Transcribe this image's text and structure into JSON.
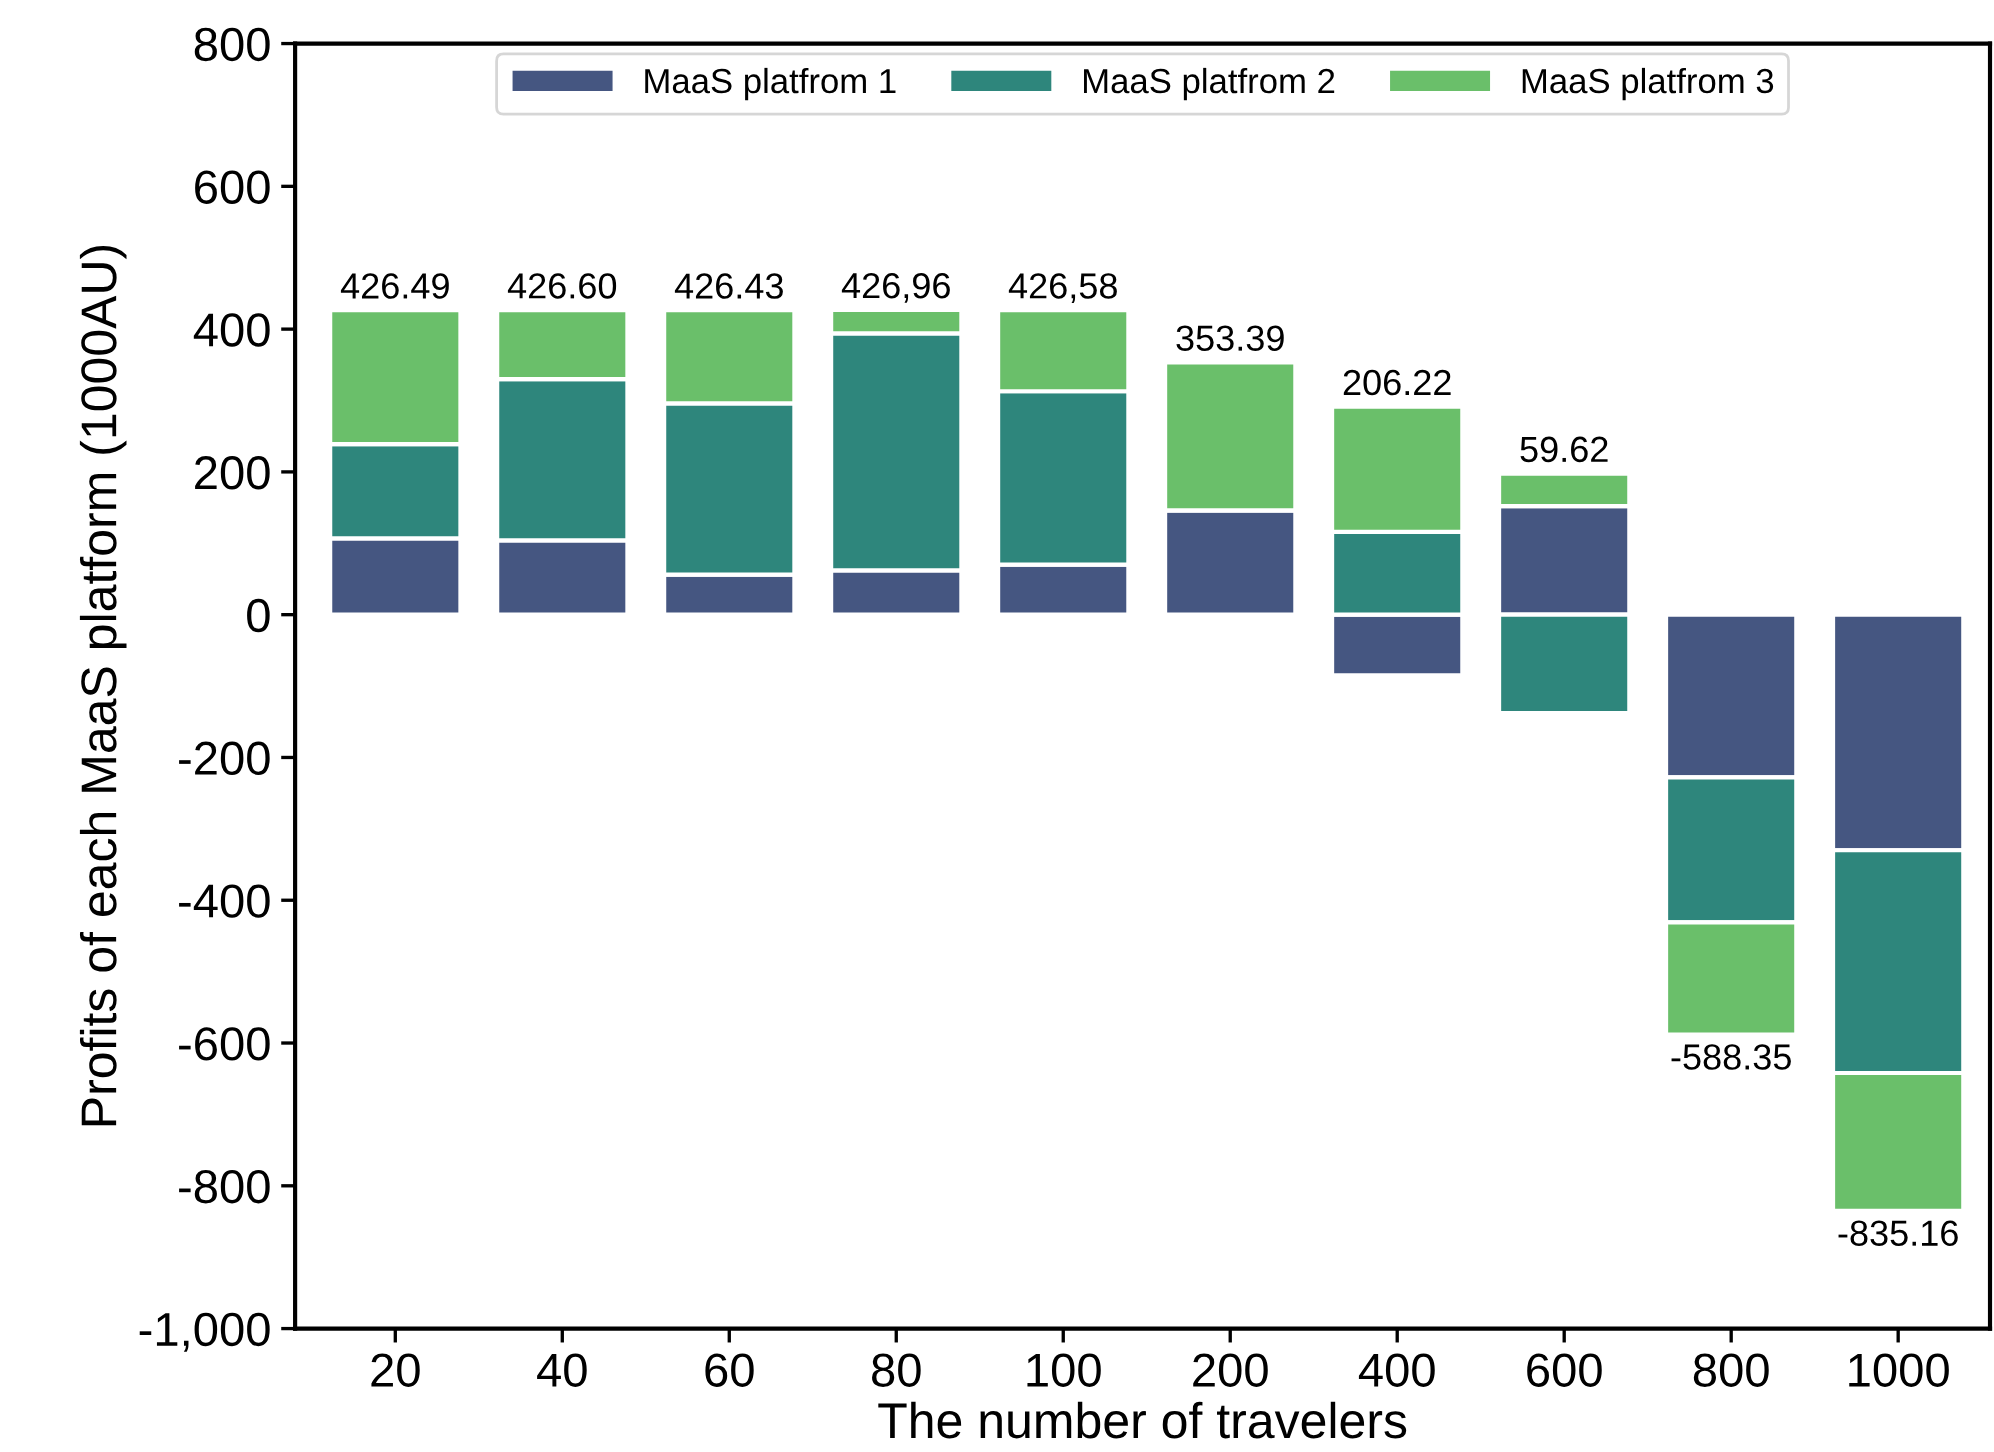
{
  "chart_data": {
    "type": "bar",
    "stacked": true,
    "xlabel": "The number of travelers",
    "ylabel": "Profits of each MaaS platform (1000AU)",
    "categories": [
      "20",
      "40",
      "60",
      "80",
      "100",
      "200",
      "400",
      "600",
      "800",
      "1000"
    ],
    "series": [
      {
        "name": "MaaS platfrom 1",
        "color": "#455681",
        "values": [
          107,
          104,
          56,
          62,
          70,
          146,
          -85,
          152,
          -228,
          -330
        ]
      },
      {
        "name": "MaaS platfrom 2",
        "color": "#2e867c",
        "values": [
          132,
          226,
          240,
          332,
          243,
          0,
          116,
          -138,
          -203,
          -312
        ]
      },
      {
        "name": "MaaS platfrom 3",
        "color": "#6abf6a",
        "values": [
          187.49,
          96.6,
          130.43,
          32.96,
          113.58,
          207.39,
          175.22,
          45.62,
          -157.35,
          -193.16
        ]
      }
    ],
    "totals": [
      "426.49",
      "426.60",
      "426.43",
      "426,96",
      "426,58",
      "353.39",
      "206.22",
      "59.62",
      "-588.35",
      "-835.16"
    ],
    "ylim": [
      -1000,
      800
    ],
    "yticks": [
      {
        "value": -1000,
        "label": "-1,000"
      },
      -800,
      -600,
      -400,
      -200,
      0,
      200,
      400,
      600,
      800
    ],
    "legend": "top",
    "grid": false
  }
}
